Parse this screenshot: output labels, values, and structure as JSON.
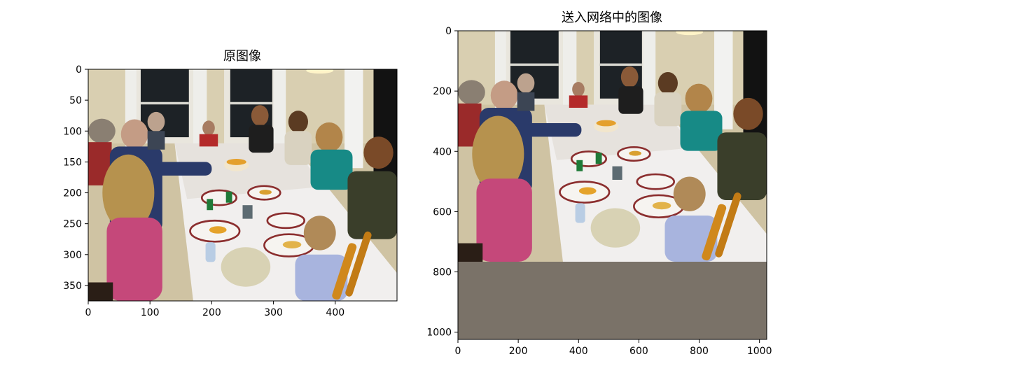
{
  "chart_data": [
    {
      "type": "image",
      "title": "原图像",
      "image_width": 500,
      "image_height": 375,
      "xlim": [
        0,
        500
      ],
      "ylim": [
        375,
        0
      ],
      "xticks": [
        0,
        100,
        200,
        300,
        400
      ],
      "yticks": [
        0,
        50,
        100,
        150,
        200,
        250,
        300,
        350
      ],
      "content": "family dinner photo"
    },
    {
      "type": "image",
      "title": "送入网络中的图像",
      "image_width": 1024,
      "image_height": 1024,
      "content_height": 768,
      "padding_color": "#7a7268",
      "xlim": [
        0,
        1024
      ],
      "ylim": [
        1024,
        0
      ],
      "xticks": [
        0,
        200,
        400,
        600,
        800,
        1000
      ],
      "yticks": [
        0,
        200,
        400,
        600,
        800,
        1000
      ],
      "content": "family dinner photo resized and padded"
    }
  ]
}
